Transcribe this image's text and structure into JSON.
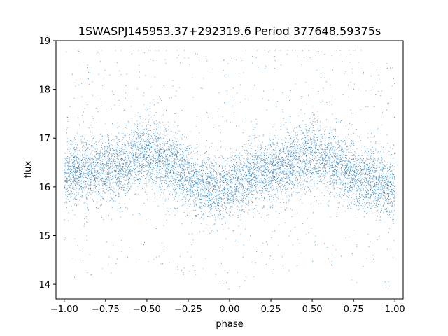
{
  "chart_data": {
    "type": "scatter",
    "title": "1SWASPJ145953.37+292319.6 Period 377648.59375s",
    "xlabel": "phase",
    "ylabel": "flux",
    "xlim": [
      -1.05,
      1.05
    ],
    "ylim": [
      13.7,
      19.0
    ],
    "xticks": [
      -1.0,
      -0.75,
      -0.5,
      -0.25,
      0.0,
      0.25,
      0.5,
      0.75,
      1.0
    ],
    "xtick_labels": [
      "−1.00",
      "−0.75",
      "−0.50",
      "−0.25",
      "0.00",
      "0.25",
      "0.50",
      "0.75",
      "1.00"
    ],
    "yticks": [
      14,
      15,
      16,
      17,
      18,
      19
    ],
    "ytick_labels": [
      "14",
      "15",
      "16",
      "17",
      "18",
      "19"
    ],
    "grid": false,
    "legend": "none",
    "marker_color": "#1f77b4",
    "phase_range": [
      -1.0,
      1.0
    ],
    "flux_core_range": [
      15.3,
      17.4
    ],
    "flux_full_range": [
      13.9,
      18.8
    ],
    "mean_curve": {
      "phase": [
        -1.0,
        -0.85,
        -0.7,
        -0.5,
        -0.35,
        -0.2,
        -0.1,
        0.0,
        0.15,
        0.3,
        0.5,
        0.65,
        0.8,
        0.9,
        1.0
      ],
      "flux": [
        16.25,
        16.35,
        16.4,
        16.65,
        16.45,
        16.1,
        15.95,
        16.0,
        16.25,
        16.4,
        16.65,
        16.45,
        16.15,
        16.05,
        16.0
      ]
    }
  }
}
